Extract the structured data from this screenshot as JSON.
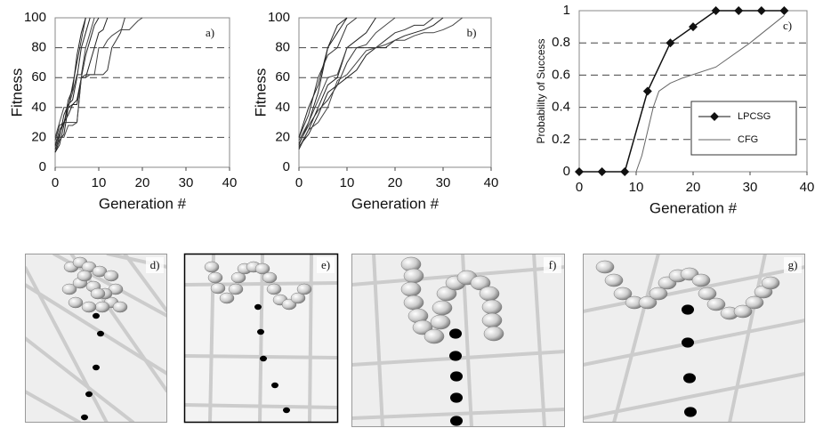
{
  "chart_data": [
    {
      "type": "line",
      "panel_label": "a)",
      "x_label": "Generation #",
      "y_label": "Fitness",
      "x": [
        0,
        1,
        2,
        3,
        4,
        5,
        6,
        7,
        8,
        9,
        10,
        11,
        12,
        13,
        14,
        15,
        16,
        17,
        18,
        19,
        20,
        21
      ],
      "series": [
        {
          "color": "#222",
          "values": [
            12,
            20,
            35,
            42,
            45,
            60,
            80,
            90,
            100,
            null,
            null,
            null,
            null,
            null,
            null,
            null,
            null,
            null,
            null,
            null,
            null,
            null
          ]
        },
        {
          "color": "#333",
          "values": [
            15,
            25,
            30,
            40,
            55,
            70,
            85,
            100,
            null,
            null,
            null,
            null,
            null,
            null,
            null,
            null,
            null,
            null,
            null,
            null,
            null,
            null
          ]
        },
        {
          "color": "#222",
          "values": [
            10,
            18,
            22,
            40,
            42,
            45,
            60,
            75,
            85,
            95,
            100,
            null,
            null,
            null,
            null,
            null,
            null,
            null,
            null,
            null,
            null,
            null
          ]
        },
        {
          "color": "#444",
          "values": [
            20,
            30,
            40,
            40,
            50,
            62,
            62,
            80,
            90,
            100,
            null,
            null,
            null,
            null,
            null,
            null,
            null,
            null,
            null,
            null,
            null,
            null
          ]
        },
        {
          "color": "#222",
          "values": [
            14,
            22,
            30,
            35,
            42,
            42,
            60,
            60,
            70,
            80,
            90,
            92,
            100,
            null,
            null,
            null,
            null,
            null,
            null,
            null,
            null,
            null
          ]
        },
        {
          "color": "#333",
          "values": [
            18,
            28,
            30,
            30,
            30,
            30,
            60,
            62,
            62,
            62,
            62,
            62,
            65,
            80,
            85,
            90,
            100,
            null,
            null,
            null,
            null,
            null
          ]
        },
        {
          "color": "#222",
          "values": [
            10,
            15,
            28,
            45,
            52,
            75,
            90,
            100,
            null,
            null,
            null,
            null,
            null,
            null,
            null,
            null,
            null,
            null,
            null,
            null,
            null,
            null
          ]
        },
        {
          "color": "#444",
          "values": [
            16,
            20,
            20,
            28,
            28,
            30,
            60,
            60,
            62,
            62,
            80,
            80,
            85,
            88,
            90,
            92,
            92,
            92,
            95,
            98,
            100,
            null
          ]
        }
      ],
      "xlim": [
        0,
        40
      ],
      "xticks": [
        0,
        10,
        20,
        30,
        40
      ],
      "ylim": [
        0,
        100
      ],
      "yticks": [
        0,
        20,
        40,
        60,
        80,
        100
      ],
      "grid": true
    },
    {
      "type": "line",
      "panel_label": "b)",
      "x_label": "Generation #",
      "y_label": "Fitness",
      "x": [
        0,
        2,
        4,
        6,
        8,
        10,
        12,
        14,
        16,
        18,
        20,
        22,
        24,
        26,
        28,
        30,
        32,
        34
      ],
      "series": [
        {
          "color": "#222",
          "values": [
            15,
            30,
            50,
            80,
            90,
            100,
            null,
            null,
            null,
            null,
            null,
            null,
            null,
            null,
            null,
            null,
            null,
            null
          ]
        },
        {
          "color": "#333",
          "values": [
            20,
            35,
            60,
            75,
            80,
            95,
            100,
            null,
            null,
            null,
            null,
            null,
            null,
            null,
            null,
            null,
            null,
            null
          ]
        },
        {
          "color": "#222",
          "values": [
            12,
            25,
            40,
            55,
            60,
            80,
            85,
            90,
            100,
            null,
            null,
            null,
            null,
            null,
            null,
            null,
            null,
            null
          ]
        },
        {
          "color": "#444",
          "values": [
            18,
            30,
            45,
            60,
            62,
            80,
            80,
            82,
            90,
            95,
            100,
            null,
            null,
            null,
            null,
            null,
            null,
            null
          ]
        },
        {
          "color": "#222",
          "values": [
            14,
            22,
            35,
            50,
            55,
            60,
            65,
            75,
            80,
            80,
            85,
            88,
            90,
            92,
            95,
            100,
            null,
            null
          ]
        },
        {
          "color": "#333",
          "values": [
            16,
            28,
            38,
            45,
            55,
            70,
            80,
            80,
            80,
            85,
            90,
            92,
            95,
            95,
            100,
            null,
            null,
            null
          ]
        },
        {
          "color": "#222",
          "values": [
            20,
            40,
            55,
            80,
            95,
            100,
            null,
            null,
            null,
            null,
            null,
            null,
            null,
            null,
            null,
            null,
            null,
            null
          ]
        },
        {
          "color": "#444",
          "values": [
            13,
            25,
            30,
            40,
            58,
            62,
            70,
            78,
            80,
            82,
            85,
            85,
            88,
            90,
            90,
            92,
            95,
            100
          ]
        }
      ],
      "xlim": [
        0,
        40
      ],
      "xticks": [
        0,
        10,
        20,
        30,
        40
      ],
      "ylim": [
        0,
        100
      ],
      "yticks": [
        0,
        20,
        40,
        60,
        80,
        100
      ],
      "grid": true
    },
    {
      "type": "line",
      "panel_label": "c)",
      "x_label": "Generation #",
      "y_label": "Probability of Success",
      "series": [
        {
          "name": "LPCSG",
          "color": "#111",
          "marker": "diamond",
          "x": [
            0,
            4,
            8,
            12,
            16,
            20,
            24,
            28,
            32,
            36
          ],
          "values": [
            0,
            0,
            0,
            0.5,
            0.8,
            0.9,
            1,
            1,
            1,
            1
          ]
        },
        {
          "name": "CFG",
          "color": "#666",
          "x": [
            10,
            11,
            12,
            13,
            14,
            16,
            18,
            24,
            30,
            36
          ],
          "values": [
            0,
            0.1,
            0.25,
            0.4,
            0.5,
            0.55,
            0.58,
            0.65,
            0.8,
            0.97
          ]
        }
      ],
      "xlim": [
        0,
        40
      ],
      "xticks": [
        0,
        10,
        20,
        30,
        40
      ],
      "ylim": [
        0,
        1
      ],
      "yticks": [
        0,
        0.2,
        0.4,
        0.6,
        0.8,
        1
      ],
      "grid": true,
      "legend": "right"
    }
  ],
  "panels": [
    "d)",
    "e)",
    "f)",
    "g)"
  ]
}
